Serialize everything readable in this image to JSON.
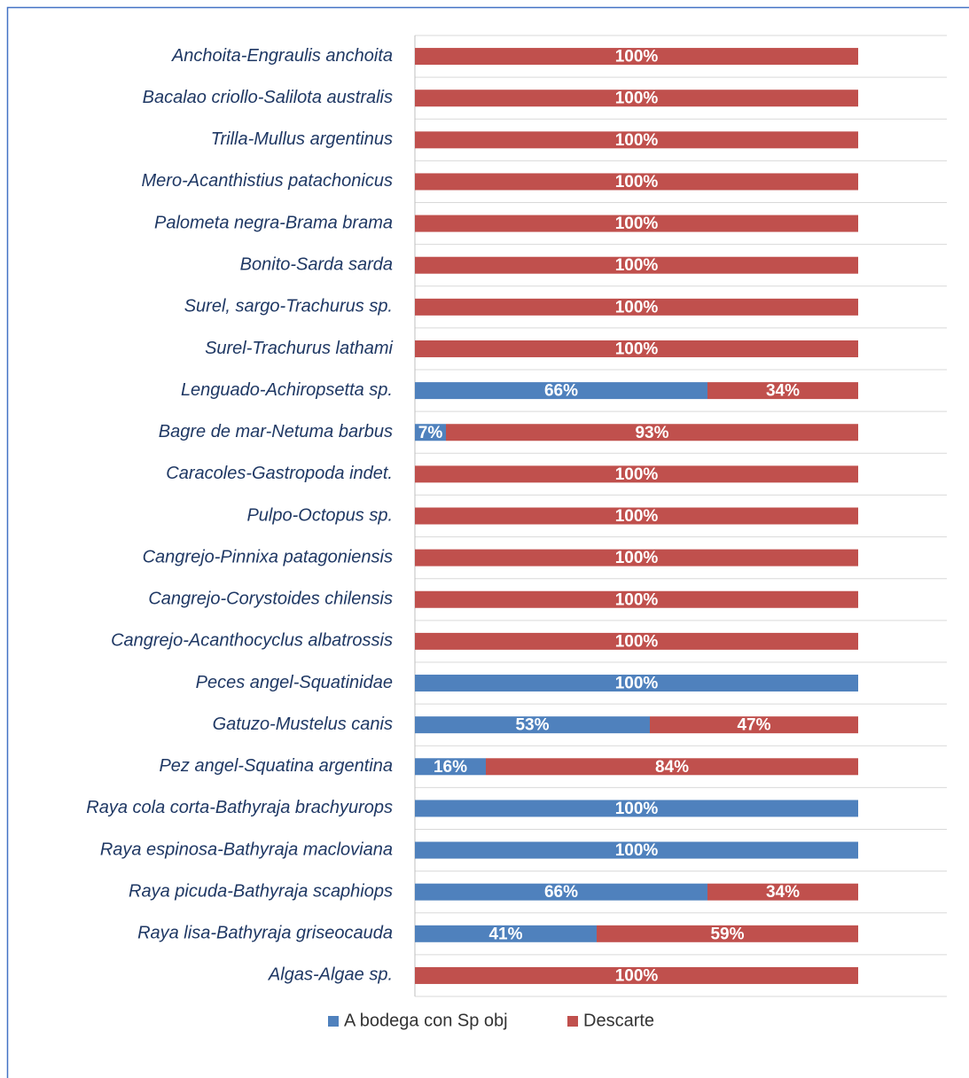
{
  "chart_data": {
    "type": "stacked_barh",
    "categories": [
      "Anchoita-Engraulis anchoita",
      "Bacalao criollo-Salilota australis",
      "Trilla-Mullus argentinus",
      "Mero-Acanthistius patachonicus",
      "Palometa negra-Brama brama",
      "Bonito-Sarda sarda",
      "Surel, sargo-Trachurus sp.",
      "Surel-Trachurus lathami",
      "Lenguado-Achiropsetta sp.",
      "Bagre de mar-Netuma barbus",
      "Caracoles-Gastropoda indet.",
      "Pulpo-Octopus sp.",
      "Cangrejo-Pinnixa patagoniensis",
      "Cangrejo-Corystoides chilensis",
      "Cangrejo-Acanthocyclus albatrossis",
      "Peces angel-Squatinidae",
      "Gatuzo-Mustelus canis",
      "Pez angel-Squatina argentina",
      "Raya cola corta-Bathyraja brachyurops",
      "Raya espinosa-Bathyraja macloviana",
      "Raya picuda-Bathyraja scaphiops",
      "Raya lisa-Bathyraja griseocauda",
      "Algas-Algae  sp."
    ],
    "series": [
      {
        "name": "A bodega con Sp obj",
        "color": "#4f81bd",
        "values": [
          0,
          0,
          0,
          0,
          0,
          0,
          0,
          0,
          66,
          7,
          0,
          0,
          0,
          0,
          0,
          100,
          53,
          16,
          100,
          100,
          66,
          41,
          0
        ],
        "value_labels": [
          null,
          null,
          null,
          null,
          null,
          null,
          null,
          null,
          "66%",
          "7%",
          null,
          null,
          null,
          null,
          null,
          "100%",
          "53%",
          "16%",
          "100%",
          "100%",
          "66%",
          "41%",
          null
        ]
      },
      {
        "name": "Descarte",
        "color": "#c0504d",
        "values": [
          100,
          100,
          100,
          100,
          100,
          100,
          100,
          100,
          34,
          93,
          100,
          100,
          100,
          100,
          100,
          0,
          47,
          84,
          0,
          0,
          34,
          59,
          100
        ],
        "value_labels": [
          "100%",
          "100%",
          "100%",
          "100%",
          "100%",
          "100%",
          "100%",
          "100%",
          "34%",
          "93%",
          "100%",
          "100%",
          "100%",
          "100%",
          "100%",
          null,
          "47%",
          "84%",
          null,
          null,
          "34%",
          "59%",
          "100%"
        ]
      }
    ],
    "xlim": [
      0,
      120
    ],
    "grid": true,
    "legend": "bottom"
  }
}
